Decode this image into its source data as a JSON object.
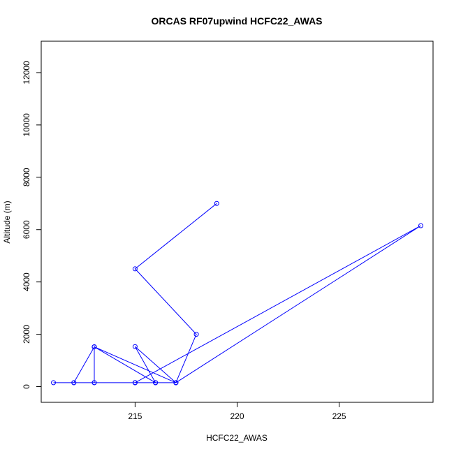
{
  "chart_data": {
    "type": "line",
    "title": "ORCAS RF07upwind HCFC22_AWAS",
    "xlabel": "HCFC22_AWAS",
    "ylabel": "Altitude (m)",
    "xlim": [
      210.4,
      229.6
    ],
    "ylim": [
      -600,
      13200
    ],
    "xticks": [
      215,
      220,
      225
    ],
    "yticks": [
      0,
      2000,
      4000,
      6000,
      8000,
      10000,
      12000
    ],
    "grid": false,
    "series": [
      {
        "color": "#0000ff",
        "marker": "open-circle",
        "x": [
          219,
          215,
          218,
          217,
          215,
          229,
          217,
          215,
          216,
          213,
          217,
          213,
          216,
          213,
          215,
          212,
          211,
          212,
          213,
          213,
          215,
          216,
          217
        ],
        "y": [
          7000,
          4500,
          2000,
          150,
          150,
          6150,
          150,
          1530,
          150,
          1520,
          150,
          1520,
          150,
          150,
          150,
          150,
          150,
          150,
          1520,
          150,
          150,
          150,
          150
        ],
        "path_order_note": ""
      }
    ]
  }
}
